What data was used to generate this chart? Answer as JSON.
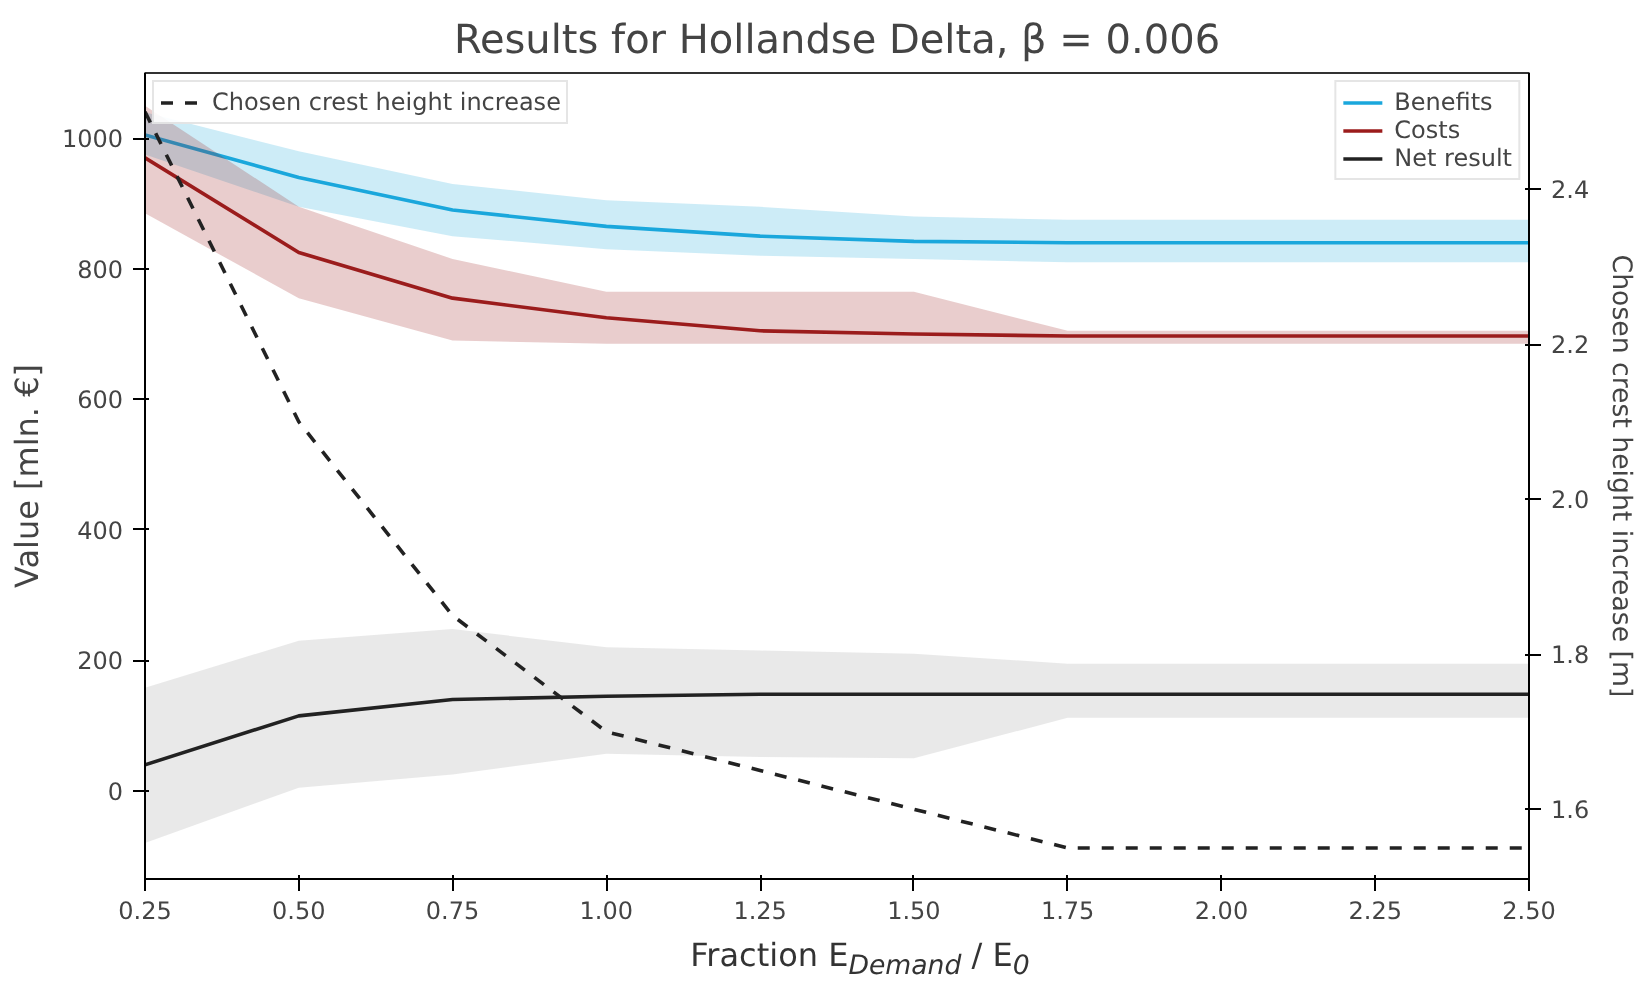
{
  "chart_data": {
    "type": "line",
    "title": "Results for Hollandse Delta, β = 0.006",
    "xlabel": "Fraction E$_{Demand}$ / E$_{0}$",
    "ylabel": "Value [mln. €]",
    "y2label": "Chosen crest height increase [m]",
    "x": [
      0.25,
      0.5,
      0.75,
      1.0,
      1.25,
      1.5,
      1.75,
      2.0,
      2.25,
      2.5
    ],
    "series": [
      {
        "name": "Benefits",
        "color": "#1aa7dc",
        "values": [
          1005,
          940,
          890,
          865,
          850,
          842,
          840,
          840,
          840,
          840
        ],
        "lower": [
          975,
          895,
          850,
          830,
          820,
          815,
          810,
          810,
          810,
          810
        ],
        "upper": [
          1040,
          980,
          930,
          905,
          895,
          880,
          875,
          875,
          875,
          875
        ]
      },
      {
        "name": "Costs",
        "color": "#9b1c1c",
        "values": [
          970,
          825,
          755,
          725,
          705,
          700,
          697,
          697,
          697,
          697
        ],
        "lower": [
          885,
          755,
          690,
          685,
          685,
          685,
          685,
          685,
          685,
          685
        ],
        "upper": [
          1050,
          895,
          815,
          765,
          765,
          765,
          705,
          705,
          705,
          705
        ]
      },
      {
        "name": "Net result",
        "color": "#222222",
        "values": [
          40,
          115,
          140,
          145,
          148,
          148,
          148,
          148,
          148,
          148
        ],
        "lower": [
          -80,
          5,
          25,
          57,
          52,
          50,
          112,
          112,
          112,
          112
        ],
        "upper": [
          158,
          230,
          248,
          220,
          215,
          210,
          195,
          195,
          195,
          195
        ]
      },
      {
        "name": "Chosen crest height increase",
        "color": "#222222",
        "axis": "y2",
        "line_style": "dashed",
        "values": [
          2.5,
          2.1,
          1.85,
          1.7,
          1.65,
          1.6,
          1.55,
          1.55,
          1.55,
          1.55
        ]
      }
    ],
    "xlim": [
      0.25,
      2.5
    ],
    "xticks": [
      0.25,
      {
        "value": 0.5,
        "label": "0.50"
      },
      0.75,
      {
        "value": 1.0,
        "label": "1.00"
      },
      1.25,
      {
        "value": 1.5,
        "label": "1.50"
      },
      1.75,
      {
        "value": 2.0,
        "label": "2.00"
      },
      2.25,
      {
        "value": 2.5,
        "label": "2.50"
      }
    ],
    "ylim": [
      -135,
      1100
    ],
    "yticks": [
      0,
      200,
      400,
      600,
      800,
      1000
    ],
    "y2lim": [
      1.51,
      2.55
    ],
    "y2ticks": [
      1.6,
      1.8,
      {
        "value": 2.0,
        "label": "2.0"
      },
      2.2,
      2.4
    ],
    "legend": "top right",
    "grid": false
  }
}
